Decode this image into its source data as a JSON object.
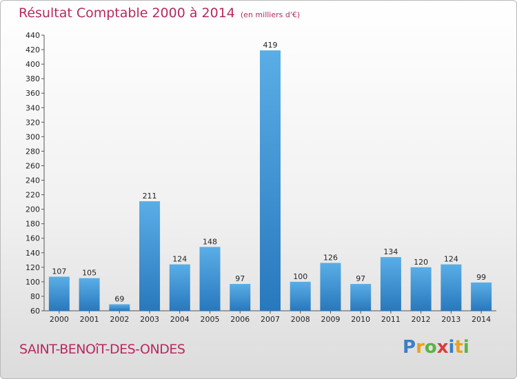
{
  "colors": {
    "title": "#b52a5e",
    "bar_light": "#5aaee6",
    "bar_dark": "#2878bd",
    "axis": "#555555",
    "grid": "#dddddd"
  },
  "footer": {
    "commune": "SAINT-BENOîT-DES-ONDES"
  },
  "brand": {
    "name": "Proxiti",
    "letter_colors": [
      "#3a7fc8",
      "#e8a21e",
      "#5ab443",
      "#d43f3f",
      "#3a7fc8",
      "#e8a21e",
      "#5ab443"
    ]
  },
  "chart_data": {
    "type": "bar",
    "title": "Résultat Comptable 2000 à 2014",
    "unit_label": "(en milliers d'€)",
    "xlabel": "",
    "ylabel": "",
    "categories": [
      "2000",
      "2001",
      "2002",
      "2003",
      "2004",
      "2005",
      "2006",
      "2007",
      "2008",
      "2009",
      "2010",
      "2011",
      "2012",
      "2013",
      "2014"
    ],
    "values": [
      107,
      105,
      69,
      211,
      124,
      148,
      97,
      419,
      100,
      126,
      97,
      134,
      120,
      124,
      99
    ],
    "ylim": [
      60,
      440
    ],
    "yticks": [
      60,
      80,
      100,
      120,
      140,
      160,
      180,
      200,
      220,
      240,
      260,
      280,
      300,
      320,
      340,
      360,
      380,
      400,
      420,
      440
    ],
    "grid": false,
    "data_labels": true
  }
}
